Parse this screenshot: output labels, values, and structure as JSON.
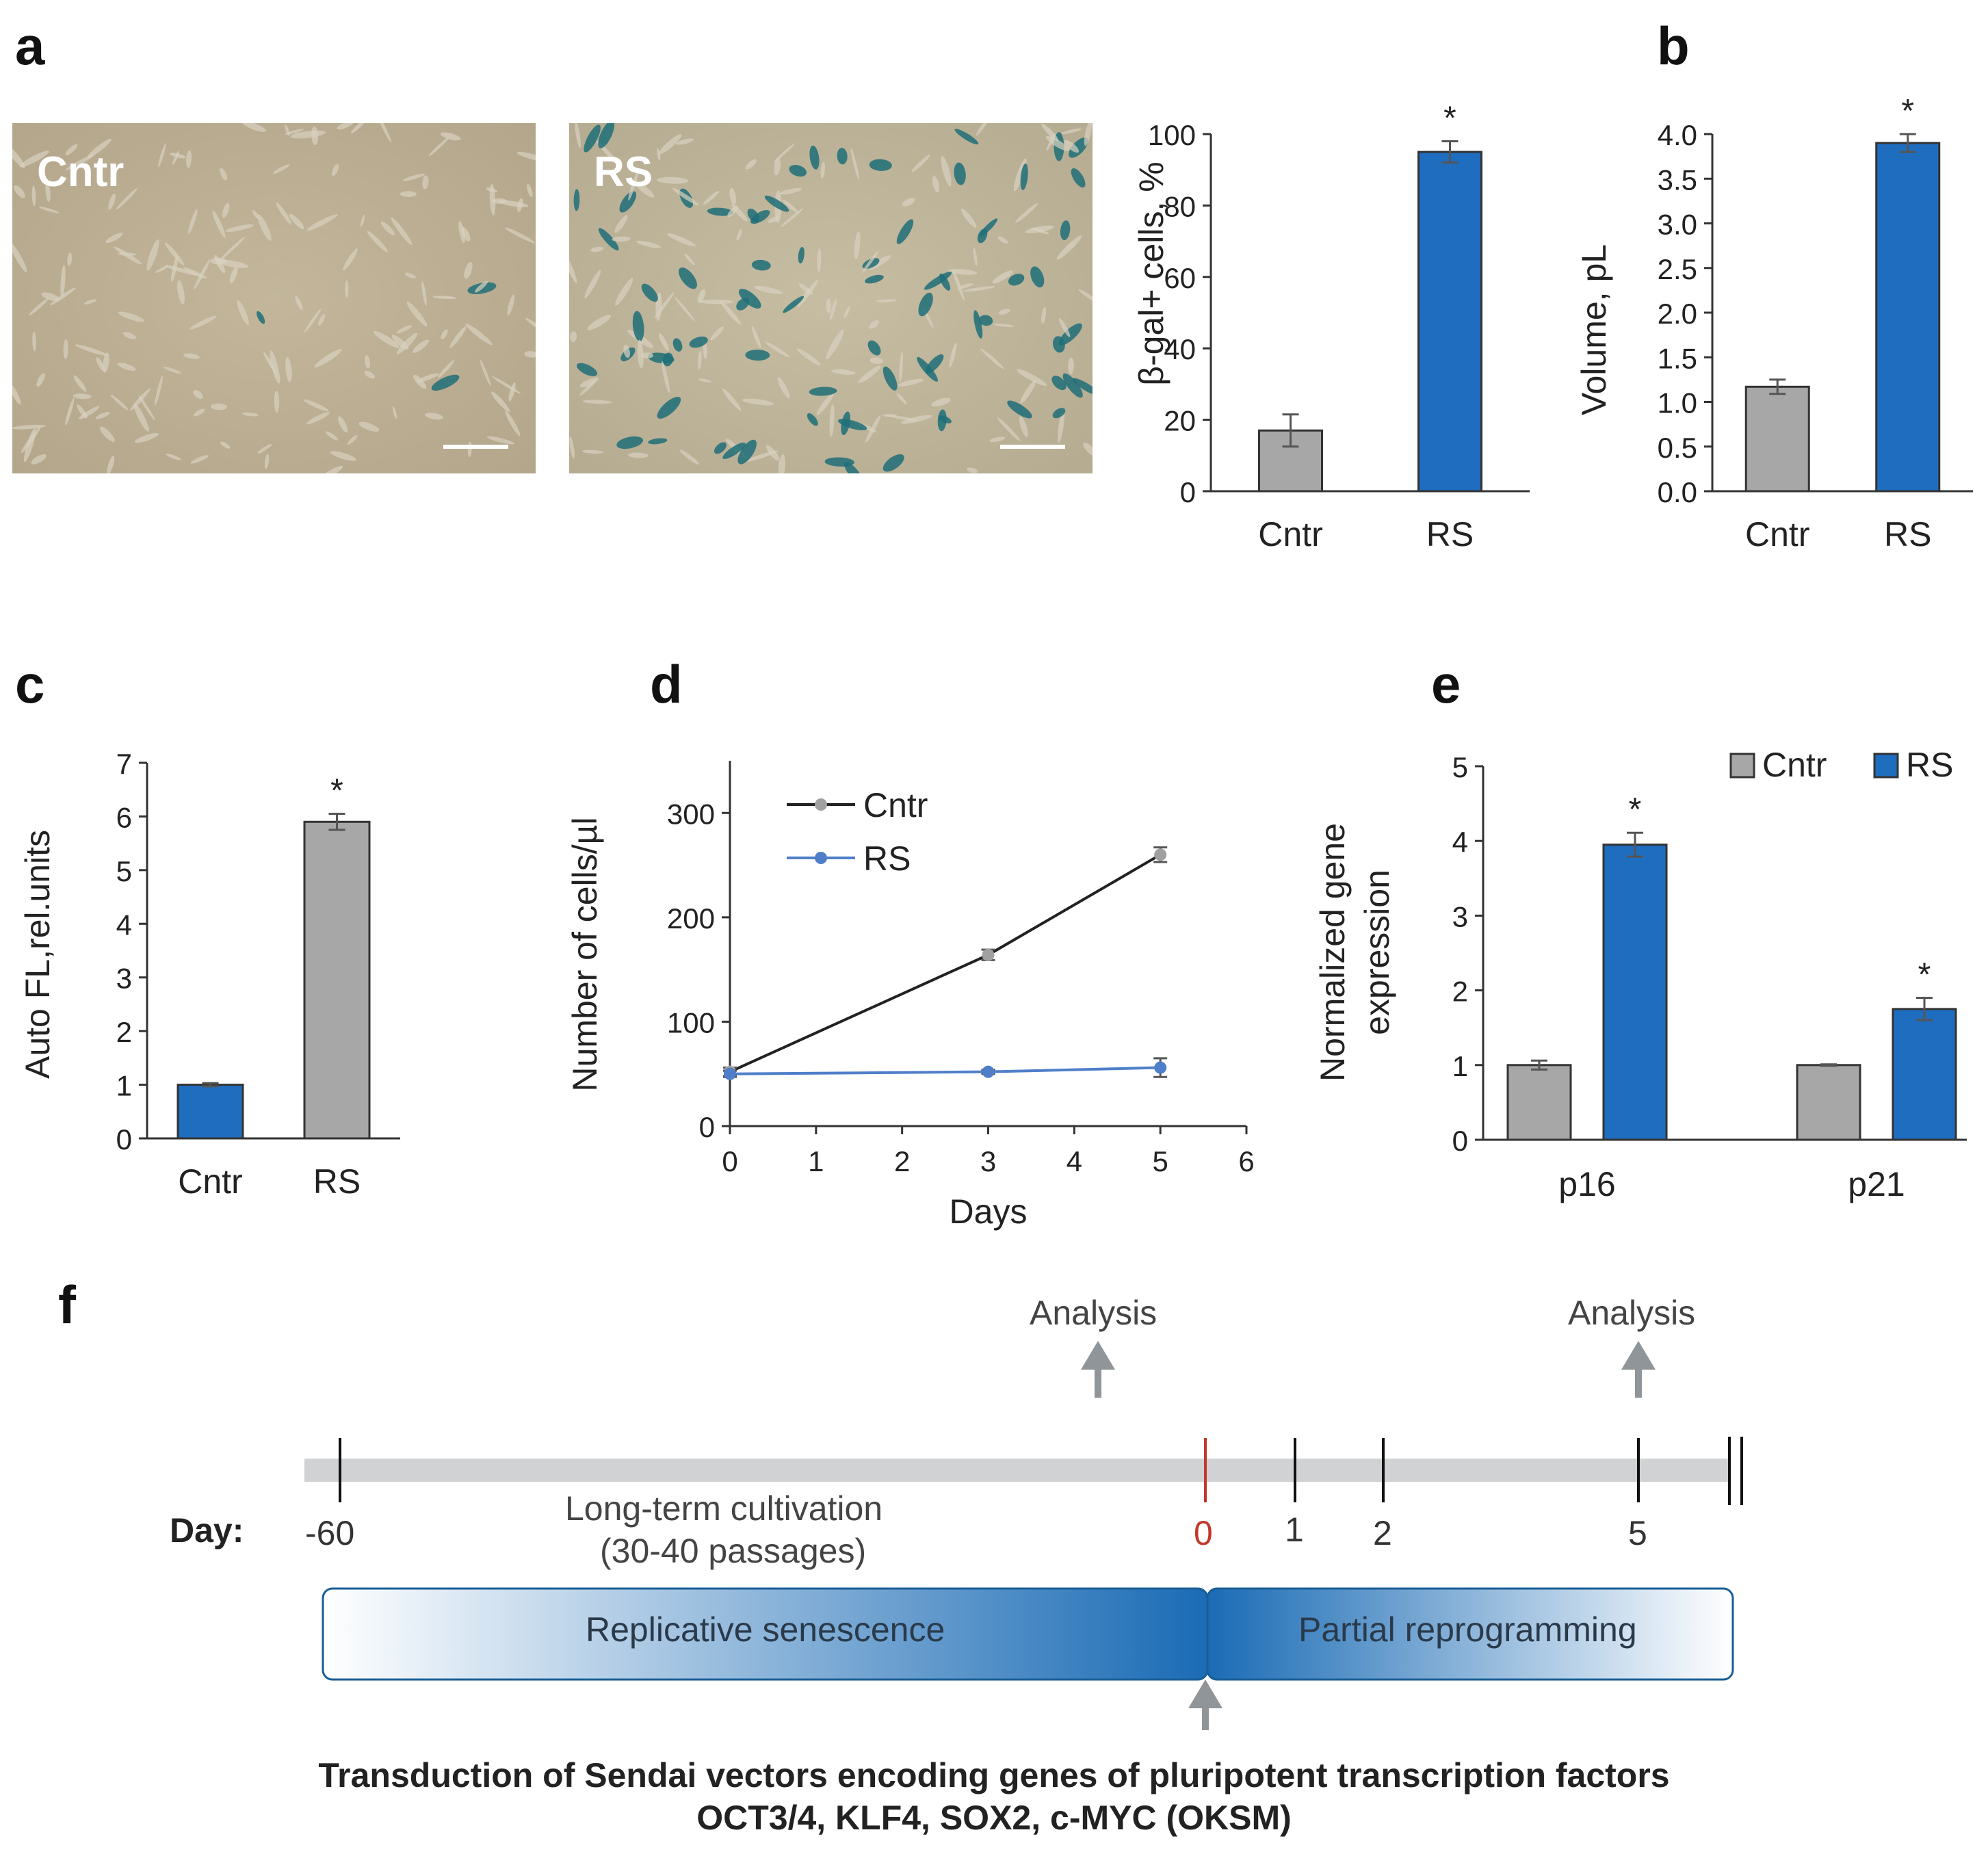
{
  "panel_letters": {
    "a": "a",
    "b": "b",
    "c": "c",
    "d": "d",
    "e": "e",
    "f": "f"
  },
  "images": {
    "cntr_label": "Cntr",
    "rs_label": "RS"
  },
  "colors": {
    "grey_bar": "#a7a7a7",
    "blue_bar": "#1f6dbf",
    "line_black": "#222222",
    "line_blue": "#4f7fc9",
    "marker_red": "#c0392b",
    "timeline": "#d0d2d4",
    "arrow": "#8f9599",
    "box_border": "#1a5e96"
  },
  "chart_data": [
    {
      "id": "a_bar",
      "type": "bar",
      "categories": [
        "Cntr",
        "RS"
      ],
      "values": [
        17,
        95
      ],
      "errors": [
        4.5,
        3
      ],
      "bar_colors": [
        "grey",
        "blue"
      ],
      "significance": [
        "",
        "*"
      ],
      "ylabel": "β-gal+ cells, %",
      "ylim": [
        0,
        100
      ],
      "yticks": [
        "0",
        "20",
        "40",
        "60",
        "80",
        "100"
      ]
    },
    {
      "id": "b_bar",
      "type": "bar",
      "categories": [
        "Cntr",
        "RS"
      ],
      "values": [
        1.17,
        3.9
      ],
      "errors": [
        0.08,
        0.1
      ],
      "bar_colors": [
        "grey",
        "blue"
      ],
      "significance": [
        "",
        "*"
      ],
      "ylabel": "Volume, pL",
      "ylim": [
        0,
        4
      ],
      "yticks": [
        "0.0",
        "0.5",
        "1.0",
        "1.5",
        "2.0",
        "2.5",
        "3.0",
        "3.5",
        "4.0"
      ]
    },
    {
      "id": "c_bar",
      "type": "bar",
      "categories": [
        "Cntr",
        "RS"
      ],
      "values": [
        1.0,
        5.9
      ],
      "errors": [
        0.03,
        0.15
      ],
      "bar_colors": [
        "blue",
        "grey"
      ],
      "significance": [
        "",
        "*"
      ],
      "ylabel": "Auto FL,rel.units",
      "ylim": [
        0,
        7
      ],
      "yticks": [
        "0",
        "1",
        "2",
        "3",
        "4",
        "5",
        "6",
        "7"
      ]
    },
    {
      "id": "d_line",
      "type": "line",
      "xlabel": "Days",
      "ylabel": "Number of cells/µl",
      "xlim": [
        0,
        6
      ],
      "ylim": [
        0,
        350
      ],
      "xticks": [
        "0",
        "1",
        "2",
        "3",
        "4",
        "5",
        "6"
      ],
      "yticks": [
        "0",
        "100",
        "200",
        "300"
      ],
      "legend_position": "top-left",
      "series": [
        {
          "name": "Cntr",
          "color": "black",
          "x": [
            0,
            3,
            5
          ],
          "y": [
            52,
            164,
            260
          ],
          "errors": [
            4,
            5,
            7
          ]
        },
        {
          "name": "RS",
          "color": "blue",
          "x": [
            0,
            3,
            5
          ],
          "y": [
            50,
            52,
            56
          ],
          "errors": [
            3,
            2,
            9
          ]
        }
      ]
    },
    {
      "id": "e_bar",
      "type": "bar",
      "categories": [
        "p16",
        "p21"
      ],
      "ylabel": "Normalized gene expression",
      "ylabel_lines": [
        "Normalized gene",
        "expression"
      ],
      "ylim": [
        0,
        5
      ],
      "yticks": [
        "0",
        "1",
        "2",
        "3",
        "4",
        "5"
      ],
      "legend_position": "top-right",
      "series": [
        {
          "name": "Cntr",
          "color": "grey",
          "values": [
            1.0,
            1.0
          ],
          "errors": [
            0.06,
            0.01
          ],
          "significance": [
            "",
            ""
          ]
        },
        {
          "name": "RS",
          "color": "blue",
          "values": [
            3.95,
            1.75
          ],
          "errors": [
            0.16,
            0.15
          ],
          "significance": [
            "*",
            "*"
          ]
        }
      ]
    }
  ],
  "timeline": {
    "analysis_left": "Analysis",
    "analysis_right": "Analysis",
    "day_label": "Day:",
    "ticks": [
      "-60",
      "0",
      "1",
      "2",
      "5"
    ],
    "cultivation_line1": "Long-term cultivation",
    "cultivation_line2": "(30-40 passages)",
    "box_left": "Replicative senescence",
    "box_right": "Partial reprogramming",
    "caption_line1": "Transduction of Sendai vectors encoding genes of pluripotent transcription factors",
    "caption_line2": "OCT3/4, KLF4, SOX2, c-MYC (OKSM)"
  }
}
